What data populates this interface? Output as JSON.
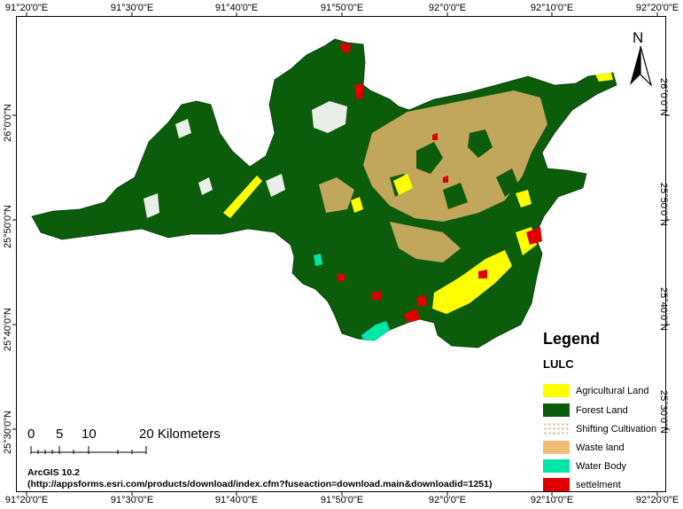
{
  "graticule": {
    "longitude_labels": [
      "91°20'0\"E",
      "91°30'0\"E",
      "91°40'0\"E",
      "91°50'0\"E",
      "92°0'0\"E",
      "92°10'0\"E",
      "92°20'0\"E"
    ],
    "latitude_labels": [
      "26°0'0\"N",
      "25°50'0\"N",
      "25°40'0\"N",
      "25°30'0\"N"
    ]
  },
  "north_arrow": {
    "letter": "N",
    "icon": "north-arrow-icon"
  },
  "legend": {
    "title": "Legend",
    "subtitle": "LULC",
    "items": [
      {
        "label": "Agricultural Land",
        "color": "#ffff00"
      },
      {
        "label": "Forest Land",
        "color": "#0b5c0b"
      },
      {
        "label": "Shifting Cultivation",
        "color": "#f2ecd2"
      },
      {
        "label": "Waste land",
        "color": "#f0bd78"
      },
      {
        "label": "Water Body",
        "color": "#00e6a9"
      },
      {
        "label": "settelment",
        "color": "#e00000"
      }
    ]
  },
  "scale_bar": {
    "labels": [
      "0",
      "5",
      "10",
      "20 Kilometers"
    ]
  },
  "credit": {
    "software": "ArcGIS  10.2",
    "url": "(http://appsforms.esri.com/products/download/index.cfm?fuseaction=download.main&downloadid=1251)"
  }
}
